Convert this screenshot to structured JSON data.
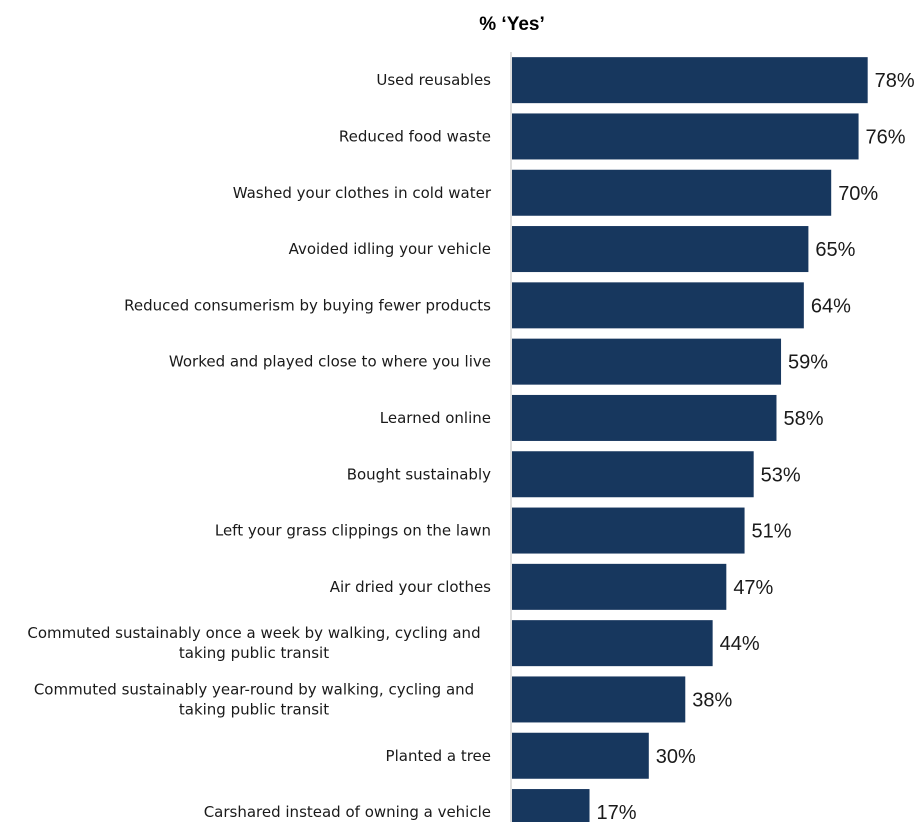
{
  "chart_data": {
    "type": "bar",
    "orientation": "horizontal",
    "title": "% ‘Yes’",
    "categories": [
      "Used reusables",
      "Reduced food waste",
      "Washed your clothes in cold water",
      "Avoided idling your vehicle",
      "Reduced consumerism by buying fewer products",
      "Worked and played close to where you live",
      "Learned online",
      "Bought sustainably",
      "Left your grass clippings on the lawn",
      "Air dried your clothes",
      "Commuted sustainably once a week by walking, cycling and taking public transit",
      "Commuted sustainably year-round  by walking, cycling and taking public transit",
      "Planted a tree",
      "Carshared instead of owning a vehicle"
    ],
    "category_lines": [
      [
        "Used reusables"
      ],
      [
        "Reduced food waste"
      ],
      [
        "Washed your clothes in cold water"
      ],
      [
        "Avoided idling your vehicle"
      ],
      [
        "Reduced consumerism by buying fewer products"
      ],
      [
        "Worked and played close to where you live"
      ],
      [
        "Learned online"
      ],
      [
        "Bought sustainably"
      ],
      [
        "Left your grass clippings on the lawn"
      ],
      [
        "Air dried your clothes"
      ],
      [
        "Commuted sustainably once a week by walking, cycling and",
        "taking public transit"
      ],
      [
        "Commuted sustainably year-round  by walking, cycling and",
        "taking public transit"
      ],
      [
        "Planted a tree"
      ],
      [
        "Carshared instead of owning a vehicle"
      ]
    ],
    "values": [
      78,
      76,
      70,
      65,
      64,
      59,
      58,
      53,
      51,
      47,
      44,
      38,
      30,
      17
    ],
    "value_labels": [
      "78%",
      "76%",
      "70%",
      "65%",
      "64%",
      "59%",
      "58%",
      "53%",
      "51%",
      "47%",
      "44%",
      "38%",
      "30%",
      "17%"
    ],
    "xlim": [
      0,
      100
    ],
    "bar_color": "#17375e",
    "grid": false,
    "legend": "none"
  }
}
